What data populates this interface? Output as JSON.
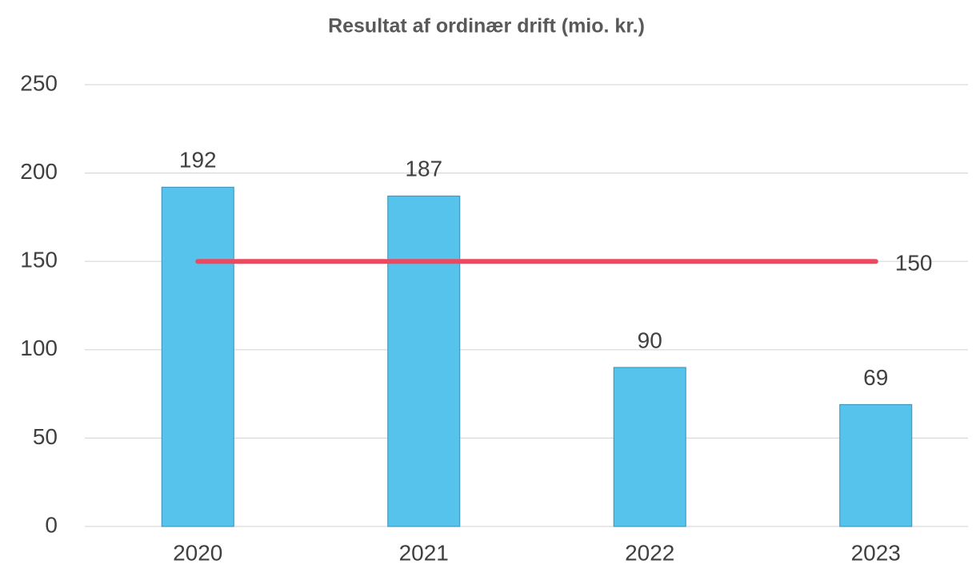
{
  "chart_data": {
    "type": "bar",
    "title": "Resultat af ordinær drift (mio. kr.)",
    "categories": [
      "2020",
      "2021",
      "2022",
      "2023"
    ],
    "series": [
      {
        "type": "bar",
        "color": "#55c3ec",
        "values": [
          192,
          187,
          90,
          69
        ]
      },
      {
        "type": "line",
        "color": "#f0475f",
        "values": [
          150,
          150,
          150,
          150
        ]
      }
    ],
    "ylim": [
      0,
      250
    ],
    "yticks": [
      0,
      50,
      100,
      150,
      200,
      250
    ],
    "grid": true
  }
}
